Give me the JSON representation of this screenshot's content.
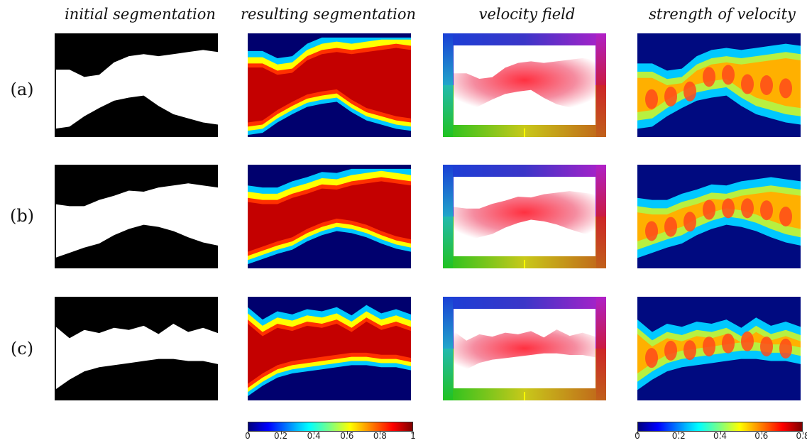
{
  "columns": [
    "initial segmentation",
    "resulting segmentation",
    "velocity field",
    "strength of velocity"
  ],
  "rows": [
    "(a)",
    "(b)",
    "(c)"
  ],
  "colorbars": {
    "segmentation": {
      "min": 0,
      "max": 1,
      "ticks": [
        "0",
        "0.2",
        "0.4",
        "0.6",
        "0.8",
        "1"
      ]
    },
    "velocity": {
      "min": 0,
      "max": 0.8,
      "ticks": [
        "0",
        "0.2",
        "0.4",
        "0.6",
        "0.8"
      ]
    }
  },
  "colors": {
    "jet_low": "#00007f",
    "jet_high": "#7f0000",
    "foreground": "#ffffff",
    "background": "#000000"
  }
}
